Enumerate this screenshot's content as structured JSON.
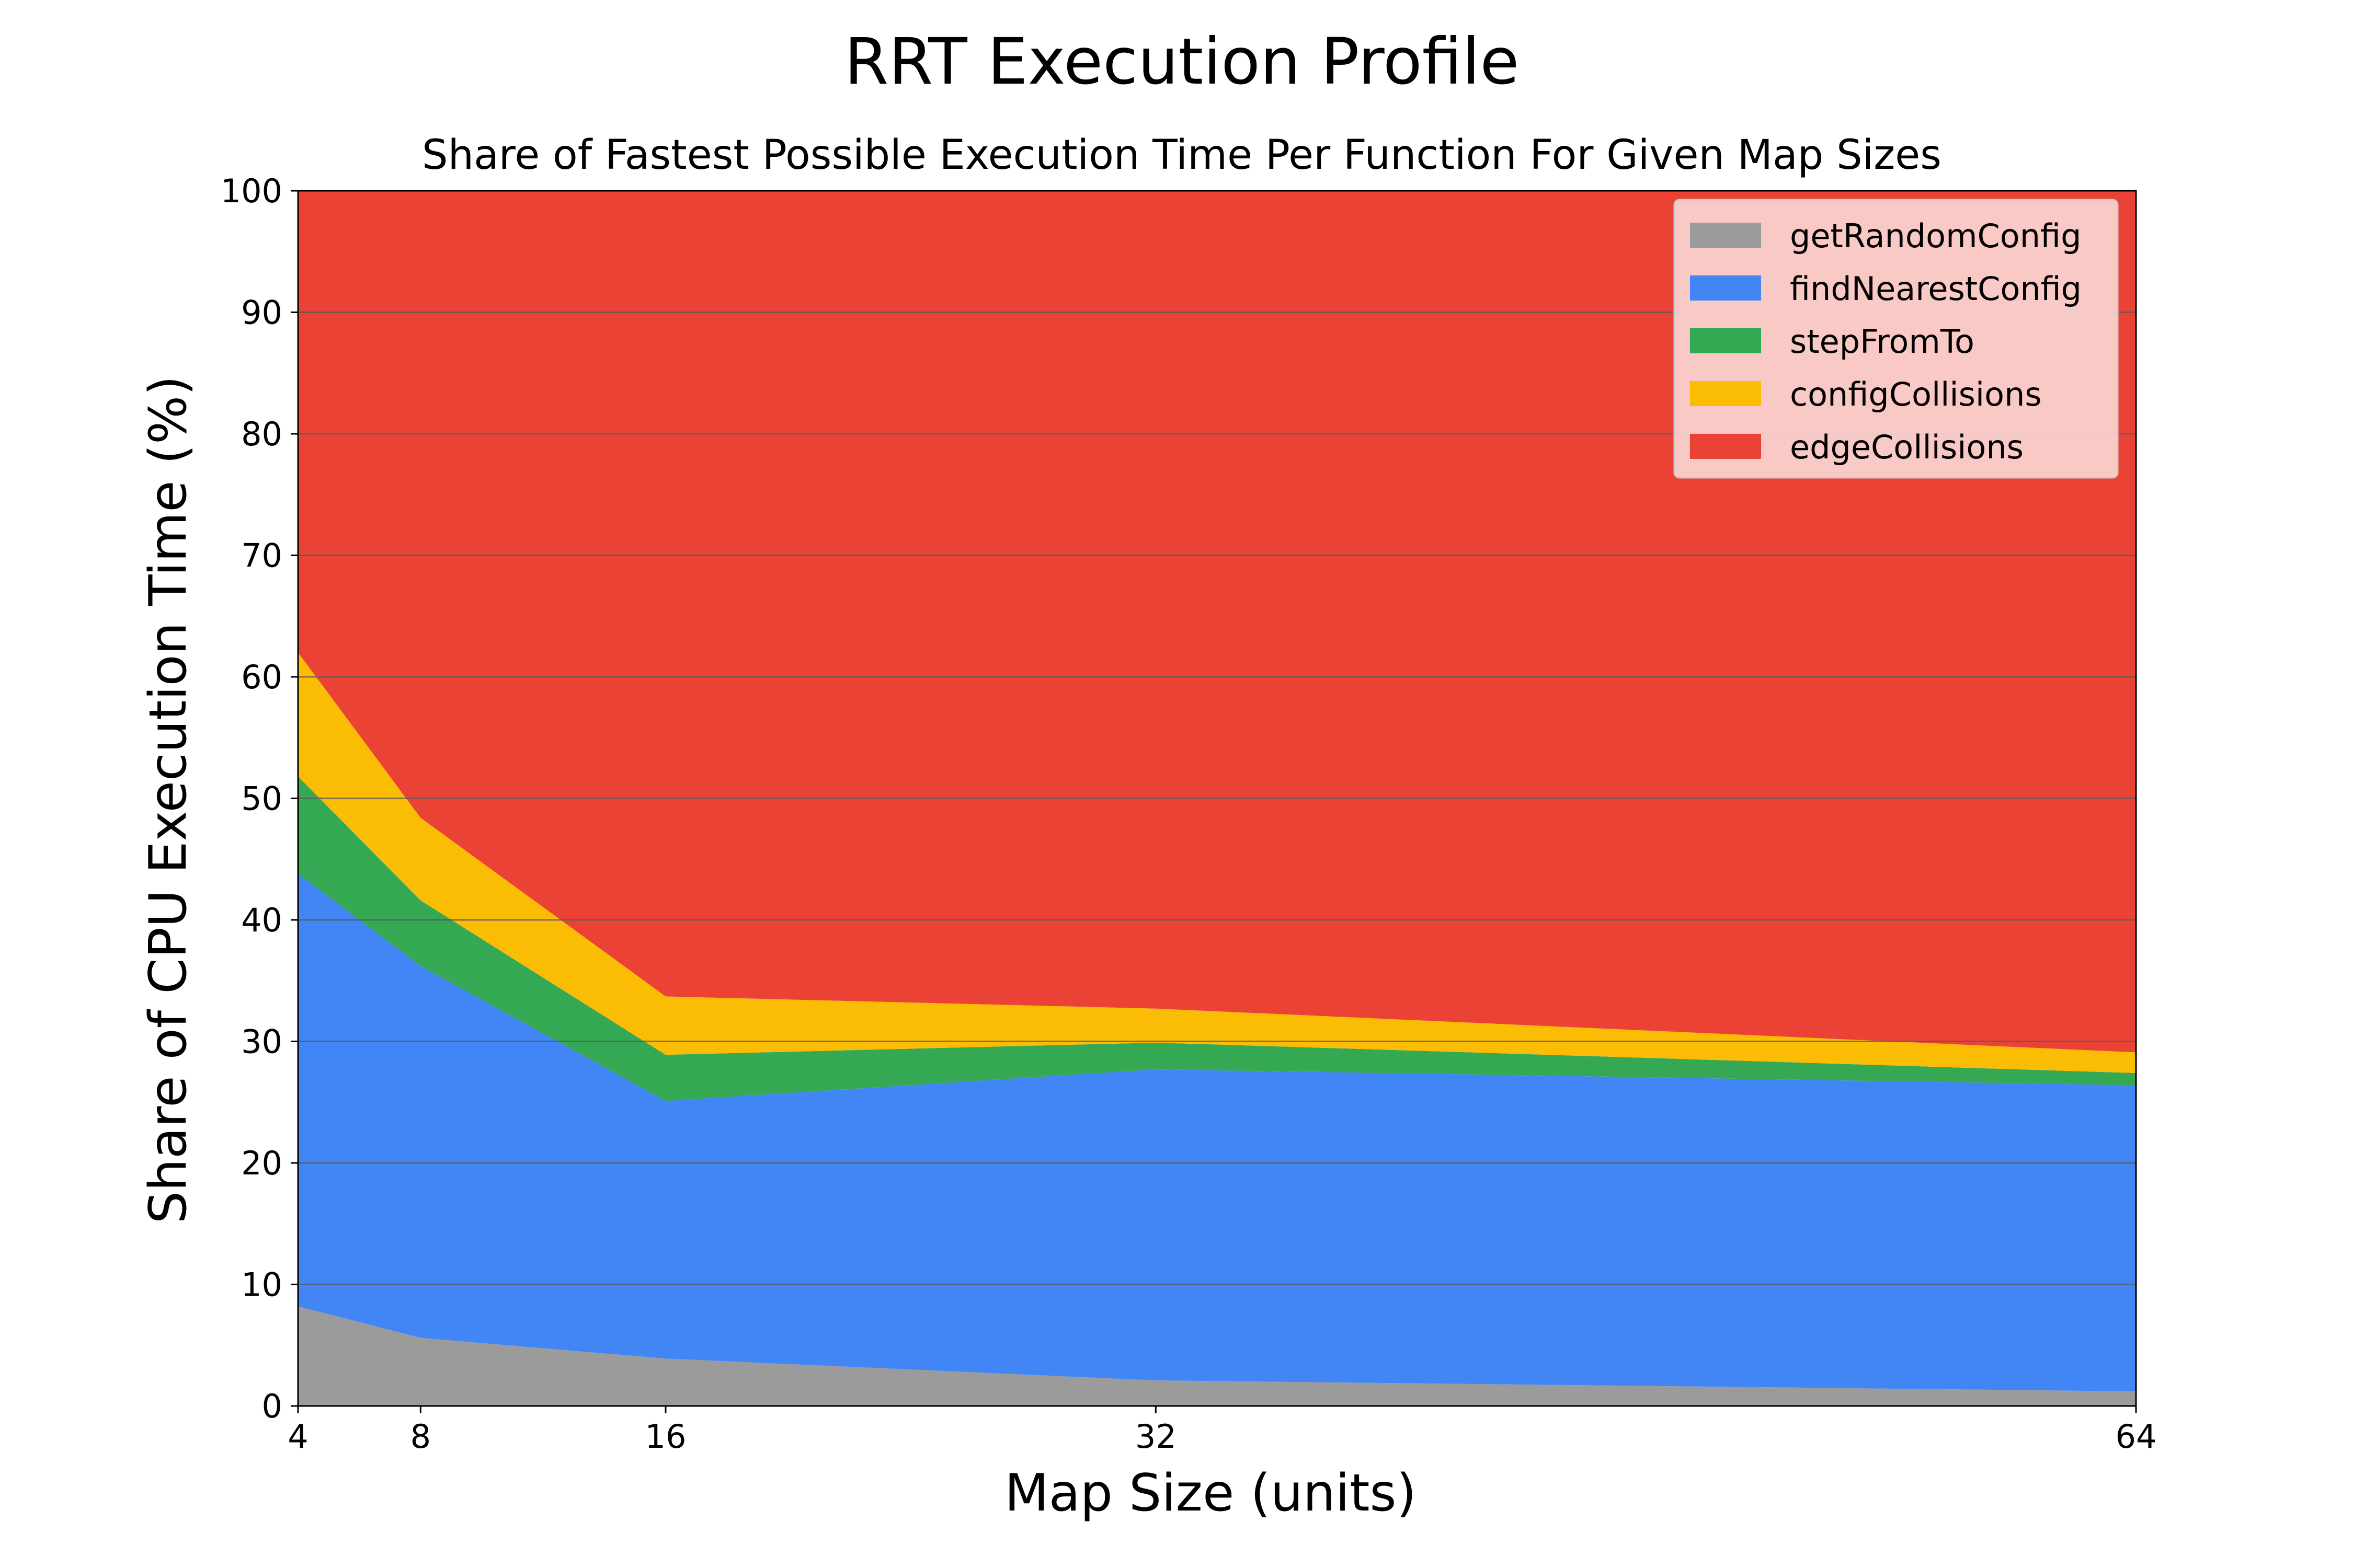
{
  "chart_data": {
    "type": "area",
    "stacked": true,
    "title": "RRT Execution Profile",
    "subtitle": "Share of Fastest Possible Execution Time Per Function For Given Map Sizes",
    "xlabel": "Map Size (units)",
    "ylabel": "Share of CPU Execution Time (%)",
    "x": [
      4,
      8,
      16,
      32,
      64
    ],
    "xticks": [
      "4",
      "8",
      "16",
      "32",
      "64"
    ],
    "xlim": [
      4,
      64
    ],
    "ylim": [
      0,
      100
    ],
    "yticks": [
      "0",
      "10",
      "20",
      "30",
      "40",
      "50",
      "60",
      "70",
      "80",
      "90",
      "100"
    ],
    "grid": "horizontal",
    "legend_position": "top-right",
    "series": [
      {
        "name": "getRandomConfig",
        "color": "#9b9b9b",
        "values": [
          8.2,
          5.6,
          3.9,
          2.1,
          1.2
        ]
      },
      {
        "name": "findNearestConfig",
        "color": "#4285f4",
        "values": [
          35.6,
          30.6,
          21.2,
          25.6,
          25.2
        ]
      },
      {
        "name": "stepFromTo",
        "color": "#34a853",
        "values": [
          8.0,
          5.4,
          3.8,
          2.2,
          1.0
        ]
      },
      {
        "name": "configCollisions",
        "color": "#fbbc04",
        "values": [
          10.2,
          6.8,
          4.8,
          2.8,
          1.7
        ]
      },
      {
        "name": "edgeCollisions",
        "color": "#ea4335",
        "values": [
          38.0,
          51.6,
          66.3,
          67.3,
          70.9
        ]
      }
    ]
  }
}
